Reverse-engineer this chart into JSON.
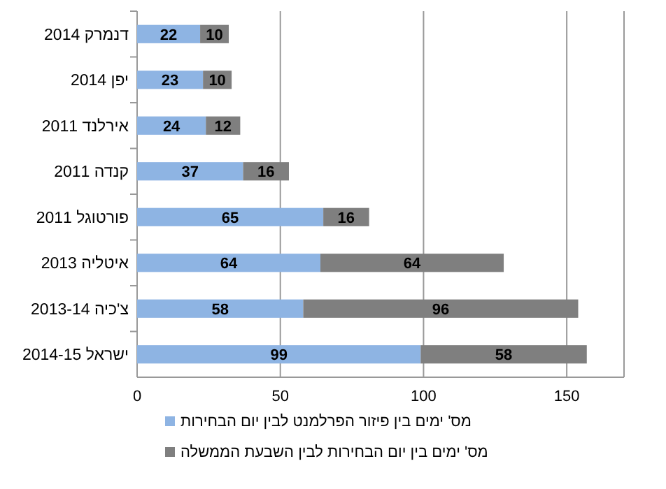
{
  "chart_data": {
    "type": "bar",
    "orientation": "horizontal",
    "stacked": true,
    "categories": [
      "דנמרק 2014",
      "יפן 2014",
      "אירלנד 2011",
      "קנדה 2011",
      "פורטוגל 2011",
      "איטליה 2013",
      "צ'כיה 2013-14",
      "ישראל 2014-15"
    ],
    "series": [
      {
        "name": "מס' ימים בין פיזור הפרלמנט לבין יום הבחירות",
        "color": "#8eb4e3",
        "values": [
          22,
          23,
          24,
          37,
          65,
          64,
          58,
          99
        ]
      },
      {
        "name": "מס' ימים בין יום הבחירות לבין השבעת הממשלה",
        "color": "#7f7f7f",
        "values": [
          10,
          10,
          12,
          16,
          16,
          64,
          96,
          58
        ]
      }
    ],
    "xlim": [
      0,
      170
    ],
    "xticks": [
      0,
      50,
      100,
      150
    ],
    "grid": "x",
    "legend": "bottom",
    "data_labels": true
  }
}
